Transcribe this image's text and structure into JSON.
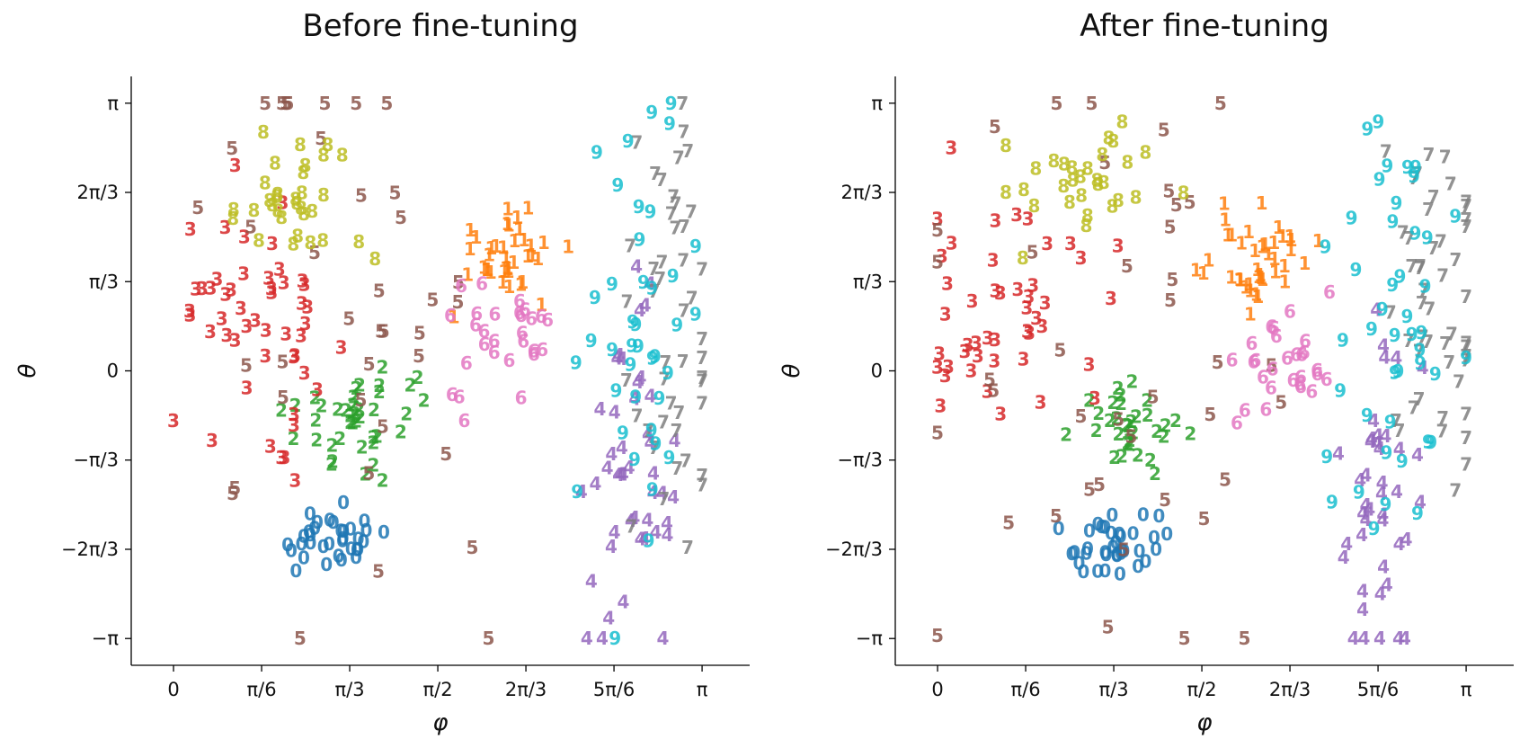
{
  "chart_data": [
    {
      "type": "scatter",
      "title": "Before fine-tuning",
      "xlabel": "φ",
      "ylabel": "θ",
      "xlim": [
        -0.08,
        1.09
      ],
      "ylim": [
        -1.1,
        1.1
      ],
      "x_ticks": [
        "0",
        "π/6",
        "π/3",
        "π/2",
        "2π/3",
        "5π/6",
        "π"
      ],
      "y_ticks": [
        "π",
        "2π/3",
        "π/3",
        "0",
        "−π/3",
        "−2π/3",
        "−π"
      ],
      "clusters": [
        {
          "label": "0",
          "color": "#1f77b4",
          "cx": 0.295,
          "cy": -0.64,
          "sx": 0.055,
          "sy": 0.06,
          "n": 34
        },
        {
          "label": "1",
          "color": "#ff7f0e",
          "cx": 0.63,
          "cy": 0.45,
          "sx": 0.05,
          "sy": 0.09,
          "n": 38
        },
        {
          "label": "2",
          "color": "#2ca02c",
          "cx": 0.36,
          "cy": -0.17,
          "sx": 0.065,
          "sy": 0.09,
          "n": 40
        },
        {
          "label": "3",
          "color": "#d62728",
          "cx": 0.16,
          "cy": 0.22,
          "sx": 0.08,
          "sy": 0.2,
          "n": 50
        },
        {
          "label": "4",
          "color": "#9467bd",
          "cx": 0.86,
          "cy": -0.45,
          "sx": 0.04,
          "sy": 0.33,
          "n": 45
        },
        {
          "label": "5",
          "color": "#8c564b",
          "cx": 0.33,
          "cy": 0.25,
          "sx": 0.2,
          "sy": 0.8,
          "n": 38
        },
        {
          "label": "6",
          "color": "#e377c2",
          "cx": 0.62,
          "cy": 0.06,
          "sx": 0.055,
          "sy": 0.12,
          "n": 28
        },
        {
          "label": "7",
          "color": "#7f7f7f",
          "cx": 0.96,
          "cy": 0.25,
          "sx": 0.06,
          "sy": 0.45,
          "n": 46
        },
        {
          "label": "8",
          "color": "#bcbd22",
          "cx": 0.23,
          "cy": 0.65,
          "sx": 0.08,
          "sy": 0.12,
          "n": 32
        },
        {
          "label": "9",
          "color": "#17becf",
          "cx": 0.88,
          "cy": 0.15,
          "sx": 0.05,
          "sy": 0.45,
          "n": 40
        }
      ]
    },
    {
      "type": "scatter",
      "title": "After fine-tuning",
      "xlabel": "φ",
      "ylabel": "θ",
      "xlim": [
        -0.08,
        1.09
      ],
      "ylim": [
        -1.1,
        1.1
      ],
      "x_ticks": [
        "0",
        "π/6",
        "π/3",
        "π/2",
        "2π/3",
        "5π/6",
        "π"
      ],
      "y_ticks": [
        "π",
        "2π/3",
        "π/3",
        "0",
        "−π/3",
        "−2π/3",
        "−π"
      ],
      "clusters": [
        {
          "label": "0",
          "color": "#1f77b4",
          "cx": 0.33,
          "cy": -0.64,
          "sx": 0.045,
          "sy": 0.06,
          "n": 36
        },
        {
          "label": "1",
          "color": "#ff7f0e",
          "cx": 0.62,
          "cy": 0.42,
          "sx": 0.045,
          "sy": 0.09,
          "n": 40
        },
        {
          "label": "2",
          "color": "#2ca02c",
          "cx": 0.36,
          "cy": -0.2,
          "sx": 0.05,
          "sy": 0.08,
          "n": 32
        },
        {
          "label": "3",
          "color": "#d62728",
          "cx": 0.12,
          "cy": 0.2,
          "sx": 0.09,
          "sy": 0.2,
          "n": 46
        },
        {
          "label": "4",
          "color": "#9467bd",
          "cx": 0.84,
          "cy": -0.5,
          "sx": 0.04,
          "sy": 0.35,
          "n": 42
        },
        {
          "label": "5",
          "color": "#8c564b",
          "cx": 0.3,
          "cy": 0.2,
          "sx": 0.2,
          "sy": 0.85,
          "n": 40
        },
        {
          "label": "6",
          "color": "#e377c2",
          "cx": 0.64,
          "cy": 0.05,
          "sx": 0.05,
          "sy": 0.1,
          "n": 28
        },
        {
          "label": "7",
          "color": "#7f7f7f",
          "cx": 0.95,
          "cy": 0.3,
          "sx": 0.06,
          "sy": 0.45,
          "n": 48
        },
        {
          "label": "8",
          "color": "#bcbd22",
          "cx": 0.27,
          "cy": 0.7,
          "sx": 0.09,
          "sy": 0.1,
          "n": 30
        },
        {
          "label": "9",
          "color": "#17becf",
          "cx": 0.87,
          "cy": 0.2,
          "sx": 0.05,
          "sy": 0.45,
          "n": 44
        }
      ]
    }
  ]
}
